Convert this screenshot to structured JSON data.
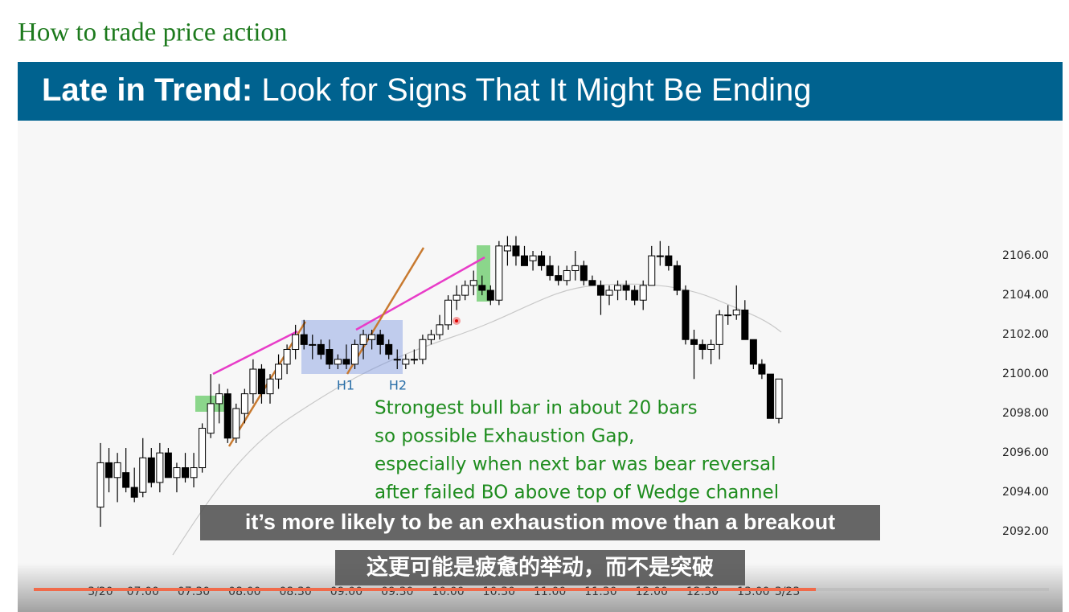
{
  "page": {
    "heading": "How to trade price action"
  },
  "video": {
    "banner_bold": "Late in Trend:",
    "banner_rest": "Look for Signs That It Might Be Ending",
    "labels": [
      "H1",
      "H2"
    ],
    "annotation": [
      "Strongest bull bar in about 20 bars",
      "so possible Exhaustion Gap,",
      "especially when next bar was bear reversal",
      "after failed BO above top of Wedge channel"
    ],
    "captions": [
      "it’s more likely to be an exhaustion move than a breakout",
      "这更可能是疲惫的举动，而不是突破"
    ]
  },
  "chart_data": {
    "type": "candlestick",
    "up_color": "#ffffff",
    "down_color": "#000000",
    "categories": [
      "3/20",
      null,
      null,
      null,
      null,
      "07:00",
      null,
      null,
      null,
      null,
      null,
      "07:30",
      null,
      null,
      null,
      null,
      null,
      "08:00",
      null,
      null,
      null,
      null,
      null,
      "08:30",
      null,
      null,
      null,
      null,
      null,
      "09:00",
      null,
      null,
      null,
      null,
      null,
      "09:30",
      null,
      null,
      null,
      null,
      null,
      "10:00",
      null,
      null,
      null,
      null,
      null,
      "10:30",
      null,
      null,
      null,
      null,
      null,
      "11:00",
      null,
      null,
      null,
      null,
      null,
      "11:30",
      null,
      null,
      null,
      null,
      null,
      "12:00",
      null,
      null,
      null,
      null,
      null,
      "12:30",
      null,
      null,
      null,
      null,
      null,
      "13:00",
      null,
      null,
      null,
      "3/23"
    ],
    "open": [
      2093.25,
      2095.5,
      2094.75,
      2095,
      2094.25,
      2094,
      2095.75,
      2094.5,
      2096,
      2094.75,
      2095.25,
      2094.75,
      2095.25,
      2097,
      2098.5,
      2099,
      2096.75,
      2098,
      2099,
      2100.25,
      2099,
      2099.75,
      2100.5,
      2101.25,
      2102,
      2101.5,
      2101.5,
      2101.25,
      2100.5,
      2100.75,
      2100.5,
      2101.5,
      2101.75,
      2102,
      2101.5,
      2100.75,
      2100.5,
      2100.75,
      2100.75,
      2101.75,
      2102,
      2102.5,
      2103.75,
      2104,
      2104.5,
      2104.5,
      2104.25,
      2103.75,
      2106.25,
      2106.5,
      2106,
      2105.75,
      2106,
      2105.5,
      2105,
      2104.75,
      2105.25,
      2105.5,
      2104.75,
      2104.5,
      2104,
      2104.25,
      2104.5,
      2104.25,
      2103.75,
      2104.5,
      2106,
      2106,
      2105.5,
      2104.25,
      2101.75,
      2101.5,
      2101.25,
      2101.5,
      2103,
      2103,
      2103.25,
      2101.75,
      2100.5,
      2100,
      2097.75,
      null
    ],
    "high": [
      2096.5,
      2096.25,
      2096,
      2096.25,
      2095.25,
      2096.75,
      2096.25,
      2096.5,
      2096.25,
      2095.5,
      2096,
      2096,
      2097.5,
      2100,
      2099.5,
      2099.25,
      2098.5,
      2099.25,
      2100.75,
      2100.5,
      2100,
      2101,
      2101.5,
      2102.5,
      2102.75,
      2102,
      2101.75,
      2101.75,
      2101,
      2101.5,
      2101.75,
      2102.25,
      2102.25,
      2102.25,
      2101.75,
      2101.25,
      2101,
      2101.25,
      2102,
      2102.25,
      2103,
      2104,
      2104.5,
      2104.75,
      2105.25,
      2105,
      2104.5,
      2106.75,
      2107,
      2107,
      2106.5,
      2106.25,
      2106.25,
      2106,
      2105.5,
      2105.5,
      2106.25,
      2105.75,
      2105,
      2104.75,
      2104.5,
      2104.75,
      2104.75,
      2104.5,
      2104.75,
      2106.5,
      2106.75,
      2106.5,
      2105.75,
      2104.5,
      2102.25,
      2101.75,
      2101.75,
      2103.25,
      2103.5,
      2104.5,
      2103.75,
      2101.75,
      2100.75,
      2100,
      2099.75,
      null
    ],
    "low": [
      2092.25,
      2094,
      2093.5,
      2094,
      2093.5,
      2093.75,
      2094.25,
      2094,
      2094.75,
      2094,
      2094.5,
      2094.25,
      2095,
      2096.75,
      2097.5,
      2096.5,
      2096.5,
      2097.5,
      2098.5,
      2098.5,
      2098.5,
      2099.25,
      2100,
      2100.75,
      2101.25,
      2100.75,
      2100.75,
      2100.25,
      2100.25,
      2100.25,
      2100.25,
      2100.75,
      2101.25,
      2101,
      2100.75,
      2100.25,
      2100.25,
      2100.5,
      2100.5,
      2101.5,
      2101.75,
      2102.25,
      2103.25,
      2103.75,
      2104,
      2104,
      2103.5,
      2103.5,
      2105.5,
      2105.5,
      2105.5,
      2105.25,
      2105.25,
      2104.75,
      2104.5,
      2104.5,
      2104.75,
      2104.5,
      2104.5,
      2103,
      2103.5,
      2103.75,
      2103.75,
      2103.5,
      2103.25,
      2104.5,
      2105.5,
      2105.25,
      2104,
      2101.5,
      2099.75,
      2100.75,
      2100.5,
      2100.75,
      2102.5,
      2102.75,
      2101.75,
      2100.25,
      2099.75,
      2097.75,
      2097.5,
      null
    ],
    "close": [
      2095.5,
      2094.75,
      2095.5,
      2094.25,
      2093.75,
      2095.75,
      2094.5,
      2096,
      2094.75,
      2095.25,
      2094.75,
      2095.25,
      2097.25,
      2098.5,
      2099,
      2096.75,
      2098.25,
      2099,
      2100.25,
      2099,
      2099.75,
      2100.5,
      2101.25,
      2102,
      2101.5,
      2101.5,
      2101,
      2100.5,
      2100.75,
      2100.5,
      2101.5,
      2102,
      2102,
      2101.5,
      2101,
      2100.75,
      2100.75,
      2100.75,
      2101.75,
      2102,
      2102.5,
      2103.75,
      2104,
      2104.5,
      2104.75,
      2104.25,
      2103.75,
      2106.5,
      2106.5,
      2106,
      2105.5,
      2106,
      2105.5,
      2105,
      2104.75,
      2105.25,
      2105.5,
      2104.75,
      2104.5,
      2104,
      2104.25,
      2104.5,
      2104.25,
      2103.75,
      2104.5,
      2106,
      2106,
      2105.5,
      2104.25,
      2101.75,
      2101.5,
      2101.25,
      2101.5,
      2103,
      2103,
      2103.25,
      2101.75,
      2100.5,
      2100,
      2097.75,
      2099.75,
      null
    ],
    "ylim": [
      2089.6,
      2112.86
    ],
    "yticks": [
      {
        "value": 2092,
        "label": "2092.00"
      },
      {
        "value": 2094,
        "label": "2094.00"
      },
      {
        "value": 2096,
        "label": "2096.00"
      },
      {
        "value": 2098,
        "label": "2098.00"
      },
      {
        "value": 2100,
        "label": "2100.00"
      },
      {
        "value": 2102,
        "label": "2102.00"
      },
      {
        "value": 2104,
        "label": "2104.00"
      },
      {
        "value": 2106,
        "label": "2106.00"
      }
    ]
  }
}
